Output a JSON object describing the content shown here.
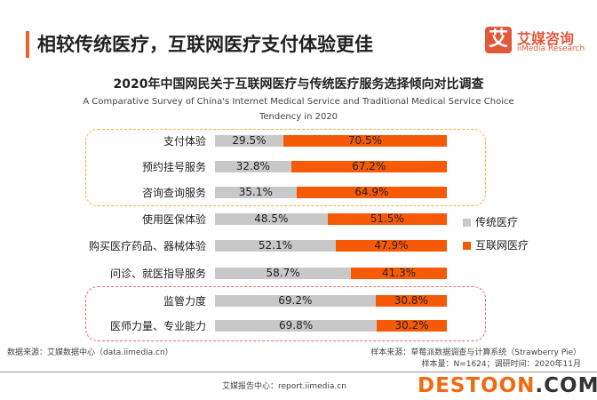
{
  "header": {
    "title": "相较传统医疗，互联网医疗支付体验更佳",
    "logo_mark": "艾",
    "logo_cn": "艾媒咨询",
    "logo_en": "iiMedia Research"
  },
  "chart_data": {
    "type": "bar",
    "stacked": true,
    "orientation": "horizontal",
    "title": "2020年中国网民关于互联网医疗与传统医疗服务选择倾向对比调查",
    "subtitle": [
      "A Comparative Survey of China's Internet Medical Service and Traditional Medical Service Choice",
      "Tendency in 2020"
    ],
    "categories": [
      "支付体验",
      "预约挂号服务",
      "咨询查询服务",
      "使用医保体验",
      "购买医疗药品、器械体验",
      "问诊、就医指导服务",
      "监管力度",
      "医师力量、专业能力"
    ],
    "series": [
      {
        "name": "传统医疗",
        "color": "#c8c8c8",
        "values": [
          29.5,
          32.8,
          35.1,
          48.5,
          52.1,
          58.7,
          69.2,
          69.8
        ],
        "labels": [
          "29.5%",
          "32.8%",
          "35.1%",
          "48.5%",
          "52.1%",
          "58.7%",
          "69.2%",
          "69.8%"
        ]
      },
      {
        "name": "互联网医疗",
        "color": "#f75a06",
        "values": [
          70.5,
          67.2,
          64.9,
          51.5,
          47.9,
          41.3,
          30.8,
          30.2
        ],
        "labels": [
          "70.5%",
          "67.2%",
          "64.9%",
          "51.5%",
          "47.9%",
          "41.3%",
          "30.8%",
          "30.2%"
        ]
      }
    ],
    "legend": "right",
    "xlim": [
      0,
      100
    ]
  },
  "footer": {
    "sample_source": "样本来源：草莓派数据调查与计算系统（Strawberry Pie）",
    "sample_size": "样本量：N=1624；调研时间：2020年11月",
    "data_source": "数据来源：艾媒数据中心（data.iimedia.cn）",
    "report_center": "艾媒报告中心：report.iimedia.cn",
    "watermark_a": "DESTOON",
    "watermark_b": ".COM"
  }
}
